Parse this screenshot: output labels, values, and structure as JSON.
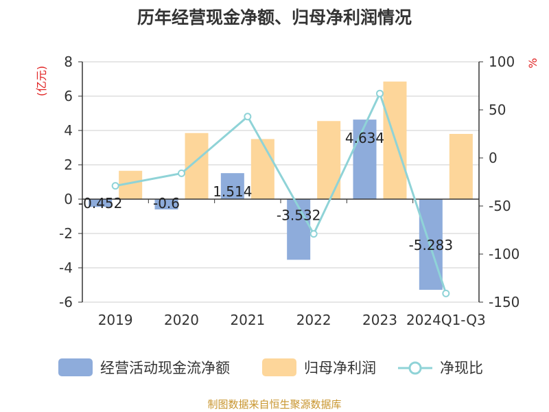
{
  "chart_data": {
    "type": "bar",
    "title": "历年经营现金净额、归母净利润情况",
    "categories": [
      "2019",
      "2020",
      "2021",
      "2022",
      "2023",
      "2024Q1-Q3"
    ],
    "left_axis": {
      "unit": "(亿元)",
      "ylim": [
        -6,
        8
      ],
      "ticks": [
        "8",
        "6",
        "4",
        "2",
        "0",
        "-2",
        "-4",
        "-6"
      ],
      "tick_values": [
        8,
        6,
        4,
        2,
        0,
        -2,
        -4,
        -6
      ]
    },
    "right_axis": {
      "unit": "%",
      "ylim": [
        -150,
        100
      ],
      "ticks": [
        "100",
        "50",
        "0",
        "-50",
        "-100",
        "-150"
      ],
      "tick_values": [
        100,
        50,
        0,
        -50,
        -100,
        -150
      ]
    },
    "series": [
      {
        "name": "经营活动现金流净额",
        "type": "bar",
        "axis": "left",
        "color": "#8eacdb",
        "values": [
          -0.452,
          -0.6,
          1.514,
          -3.532,
          4.634,
          -5.283
        ],
        "labels": [
          "-0.452",
          "-0.6",
          "1.514",
          "-3.532",
          "4.634",
          "-5.283"
        ]
      },
      {
        "name": "归母净利润",
        "type": "bar",
        "axis": "left",
        "color": "#fdd69a",
        "values": [
          1.65,
          3.85,
          3.5,
          4.55,
          6.85,
          3.8
        ]
      },
      {
        "name": "净现比",
        "type": "line",
        "axis": "right",
        "color": "#8fd3d7",
        "values": [
          -29,
          -16,
          43,
          -79,
          67,
          -141
        ]
      }
    ],
    "grid": true,
    "legend": "bottom"
  },
  "footer": {
    "source": "制图数据来自恒生聚源数据库"
  }
}
